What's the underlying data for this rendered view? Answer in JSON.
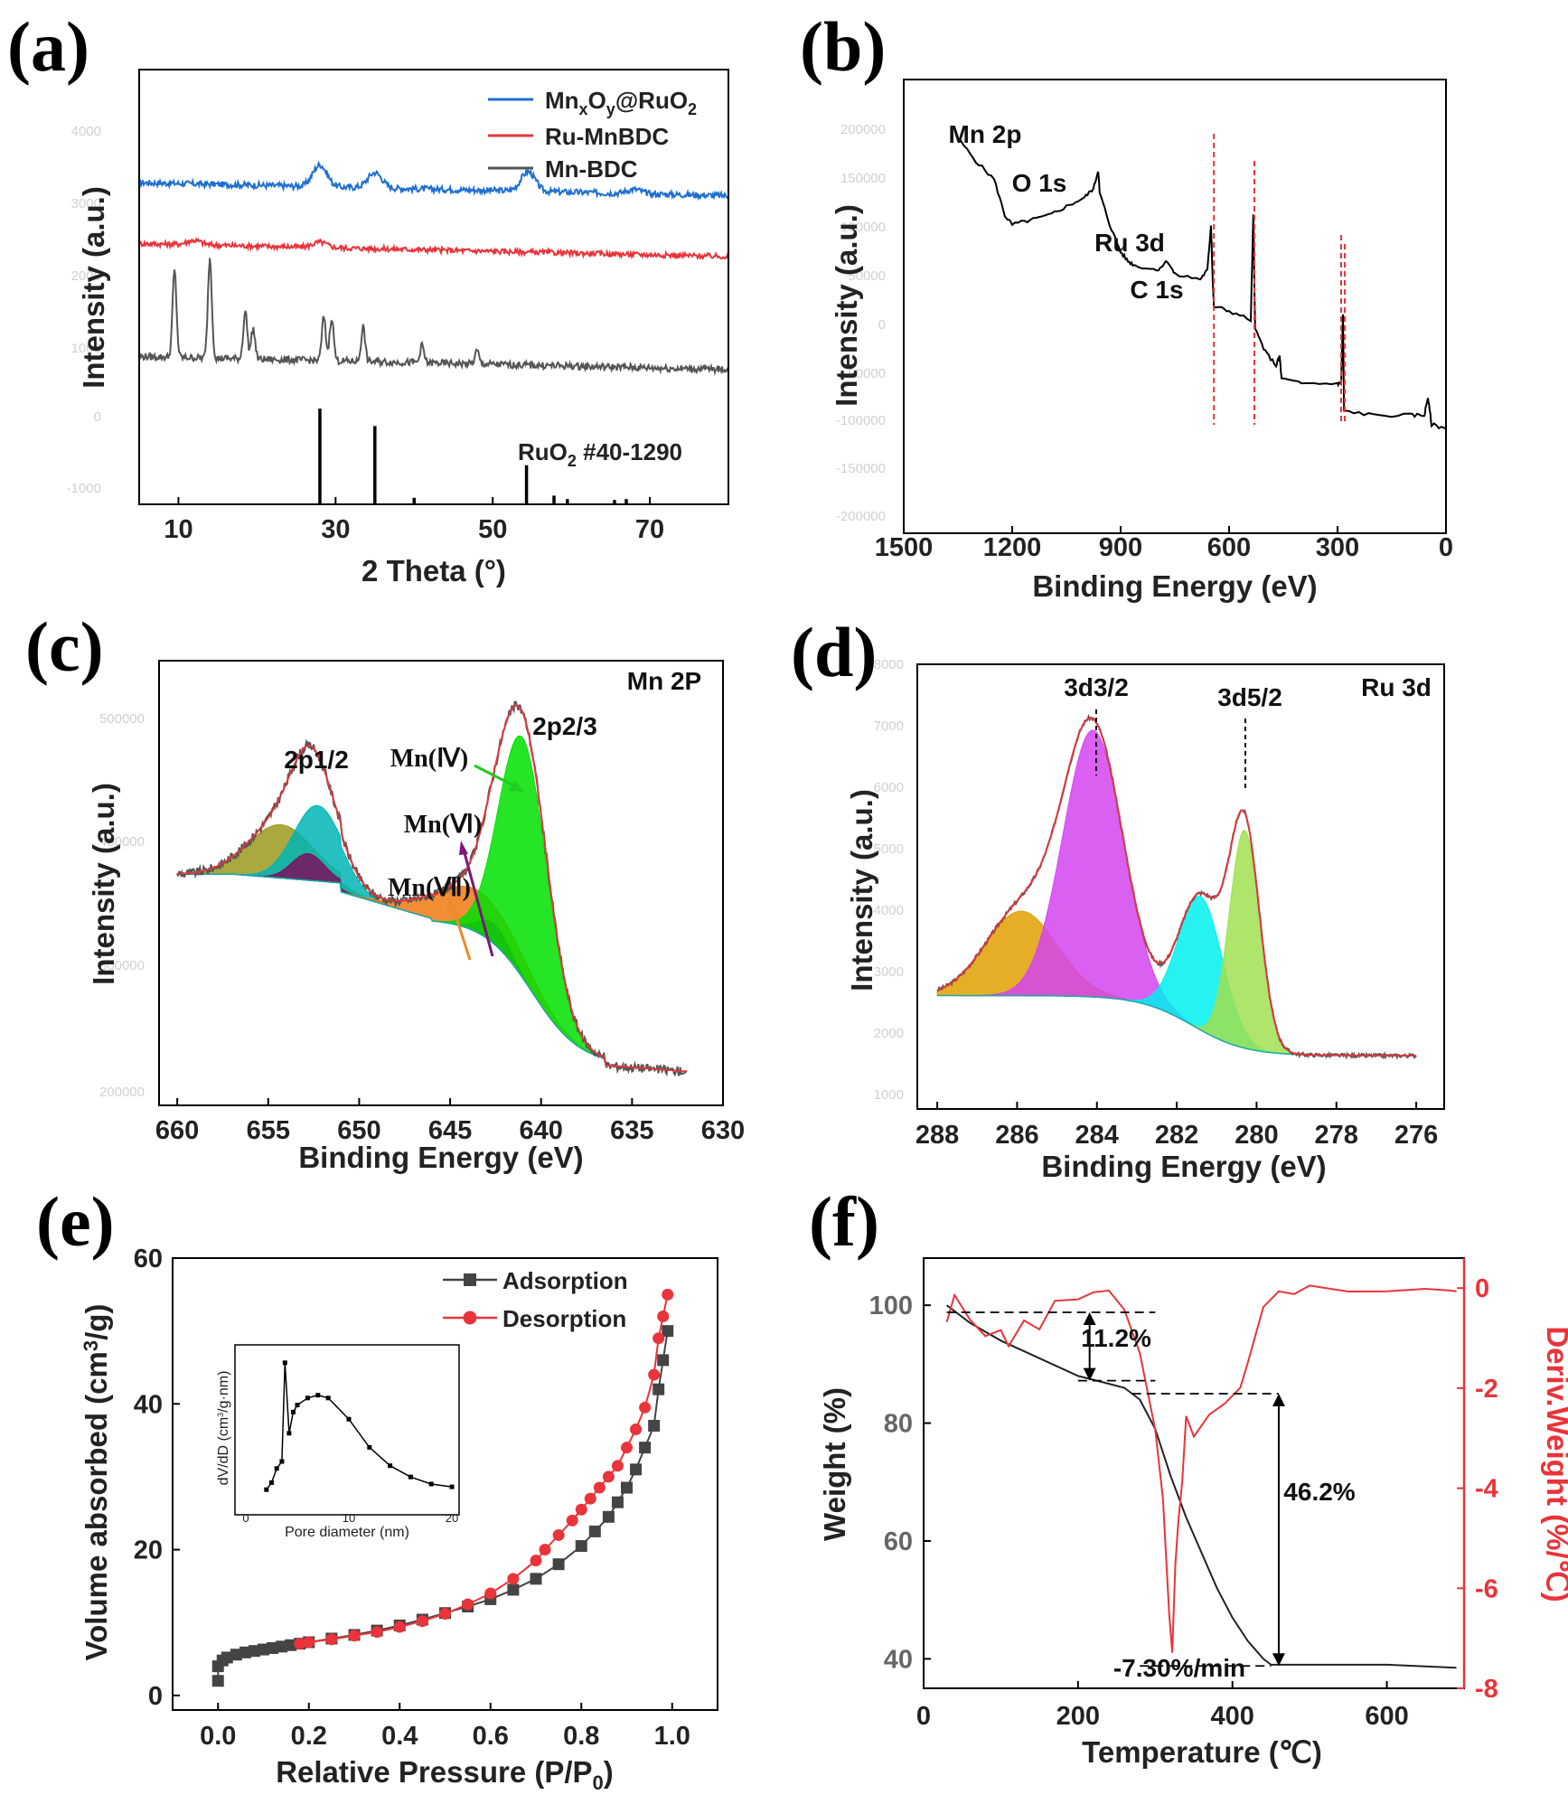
{
  "chart_data": [
    {
      "panel": "(a)",
      "type": "line",
      "xlabel": "2 Theta (°)",
      "ylabel": "Intensity (a.u.)",
      "xlim": [
        5,
        80
      ],
      "xticks": [
        "10",
        "30",
        "50",
        "70"
      ],
      "legend": "top-right",
      "series": [
        {
          "name": "MnxOy@RuO2",
          "color": "#1f6fd0",
          "baseline": 0.74,
          "peaks": [
            [
              28,
              0.05
            ],
            [
              35,
              0.035
            ],
            [
              54.5,
              0.045
            ],
            [
              68,
              0.01
            ]
          ]
        },
        {
          "name": "Ru-MnBDC",
          "color": "#e8343a",
          "baseline": 0.6,
          "peaks": [
            [
              12,
              0.01
            ],
            [
              28,
              0.012
            ]
          ]
        },
        {
          "name": "Mn-BDC",
          "color": "#555555",
          "baseline": 0.34,
          "peaks": [
            [
              9.5,
              0.2
            ],
            [
              14,
              0.23
            ],
            [
              18.5,
              0.11
            ],
            [
              19.5,
              0.07
            ],
            [
              28.5,
              0.1
            ],
            [
              29.5,
              0.1
            ],
            [
              33.5,
              0.08
            ],
            [
              41,
              0.04
            ],
            [
              48,
              0.03
            ]
          ]
        }
      ],
      "reference": {
        "label": "RuO2 #40-1290",
        "sticks": [
          [
            28,
            0.22
          ],
          [
            35,
            0.18
          ],
          [
            40,
            0.015
          ],
          [
            54.3,
            0.09
          ],
          [
            57.8,
            0.02
          ],
          [
            59.5,
            0.012
          ],
          [
            65.5,
            0.01
          ],
          [
            67,
            0.012
          ]
        ]
      }
    },
    {
      "panel": "(b)",
      "type": "line",
      "xlabel": "Binding Energy (eV)",
      "ylabel": "Intensity (a.u.)",
      "xlim": [
        1500,
        0
      ],
      "xticks": [
        "1500",
        "1200",
        "900",
        "600",
        "300",
        "0"
      ],
      "series": [
        {
          "name": "",
          "color": "#000000",
          "points": [
            [
              1350,
              0.87
            ],
            [
              1300,
              0.82
            ],
            [
              1250,
              0.78
            ],
            [
              1220,
              0.7
            ],
            [
              1200,
              0.68
            ],
            [
              1150,
              0.69
            ],
            [
              1100,
              0.7
            ],
            [
              1050,
              0.72
            ],
            [
              1000,
              0.74
            ],
            [
              975,
              0.76
            ],
            [
              962,
              0.8
            ],
            [
              958,
              0.75
            ],
            [
              930,
              0.68
            ],
            [
              900,
              0.62
            ],
            [
              880,
              0.6
            ],
            [
              860,
              0.59
            ],
            [
              800,
              0.58
            ],
            [
              770,
              0.6
            ],
            [
              750,
              0.57
            ],
            [
              680,
              0.56
            ],
            [
              660,
              0.58
            ],
            [
              650,
              0.68
            ],
            [
              645,
              0.55
            ],
            [
              642,
              0.5
            ],
            [
              600,
              0.49
            ],
            [
              540,
              0.47
            ],
            [
              533,
              0.7
            ],
            [
              528,
              0.45
            ],
            [
              500,
              0.4
            ],
            [
              470,
              0.37
            ],
            [
              460,
              0.39
            ],
            [
              455,
              0.34
            ],
            [
              400,
              0.33
            ],
            [
              300,
              0.33
            ],
            [
              290,
              0.33
            ],
            [
              285,
              0.48
            ],
            [
              282,
              0.27
            ],
            [
              200,
              0.26
            ],
            [
              100,
              0.26
            ],
            [
              60,
              0.26
            ],
            [
              50,
              0.3
            ],
            [
              40,
              0.24
            ],
            [
              0,
              0.23
            ]
          ]
        }
      ],
      "markers": [
        {
          "label": "Mn 2p",
          "x": 642
        },
        {
          "label": "O 1s",
          "x": 530
        },
        {
          "label": "Ru 3d",
          "x": 290
        },
        {
          "label": "C 1s",
          "x": 280
        }
      ]
    },
    {
      "panel": "(c)",
      "type": "area",
      "title": "Mn 2P",
      "xlabel": "Binding Energy (eV)",
      "ylabel": "Intensity (a.u.)",
      "xlim": [
        661,
        630
      ],
      "xticks": [
        "660",
        "655",
        "650",
        "645",
        "640",
        "635",
        "630"
      ],
      "annotations": [
        "2p1/2",
        "2p2/3",
        "Mn(Ⅳ)",
        "Mn(Ⅵ)",
        "Mn(Ⅶ)"
      ],
      "components": [
        {
          "color": "#9a9a1e",
          "center": 654.3,
          "height": 0.12,
          "width": 1.8
        },
        {
          "color": "#00b5b5",
          "center": 652.3,
          "height": 0.17,
          "width": 1.3
        },
        {
          "color": "#7a1060",
          "center": 652.8,
          "height": 0.06,
          "width": 0.9
        },
        {
          "color": "#ee7a12",
          "center": 643.6,
          "height": 0.095,
          "width": 2.3
        },
        {
          "color": "#7a1060",
          "center": 642.6,
          "height": 0.045,
          "width": 0.8
        },
        {
          "color": "#00e000",
          "center": 641.0,
          "height": 0.54,
          "width": 1.3
        }
      ]
    },
    {
      "panel": "(d)",
      "type": "area",
      "title": "Ru 3d",
      "xlabel": "Binding Energy (eV)",
      "ylabel": "Intensity (a.u.)",
      "xlim": [
        288.5,
        275.3
      ],
      "xticks": [
        "288",
        "286",
        "284",
        "282",
        "280",
        "278",
        "276"
      ],
      "annotations": [
        "3d3/2",
        "3d5/2"
      ],
      "components": [
        {
          "color": "#e0a000",
          "center": 285.9,
          "height": 0.19,
          "width": 0.9
        },
        {
          "color": "#d444f0",
          "center": 284.1,
          "height": 0.6,
          "width": 0.75
        },
        {
          "color": "#00f0f0",
          "center": 281.4,
          "height": 0.3,
          "width": 0.55
        },
        {
          "color": "#a0e050",
          "center": 280.3,
          "height": 0.49,
          "width": 0.38
        }
      ]
    },
    {
      "panel": "(e)",
      "type": "scatter",
      "xlabel": "Relative Pressure (P/P0)",
      "ylabel": "Volume absorbed (cm3/g)",
      "xlim": [
        -0.1,
        1.1
      ],
      "ylim": [
        -2,
        60
      ],
      "xticks": [
        "0.0",
        "0.2",
        "0.4",
        "0.6",
        "0.8",
        "1.0"
      ],
      "yticks": [
        "0",
        "20",
        "40",
        "60"
      ],
      "legend": "top-right",
      "series": [
        {
          "name": "Adsorption",
          "color": "#444444",
          "x": [
            0.0,
            0.0,
            0.01,
            0.02,
            0.04,
            0.06,
            0.08,
            0.1,
            0.12,
            0.14,
            0.16,
            0.18,
            0.2,
            0.25,
            0.3,
            0.35,
            0.4,
            0.45,
            0.5,
            0.55,
            0.6,
            0.65,
            0.7,
            0.75,
            0.8,
            0.83,
            0.86,
            0.88,
            0.9,
            0.92,
            0.94,
            0.96,
            0.97,
            0.98,
            0.99
          ],
          "y": [
            2,
            4,
            4.8,
            5.2,
            5.6,
            5.9,
            6.1,
            6.3,
            6.5,
            6.7,
            6.9,
            7.1,
            7.3,
            7.8,
            8.3,
            8.9,
            9.6,
            10.4,
            11.3,
            12.2,
            13.2,
            14.5,
            16,
            18,
            20.5,
            22.5,
            24.5,
            26.5,
            28.5,
            31,
            34,
            37,
            42,
            46,
            50
          ]
        },
        {
          "name": "Desorption",
          "color": "#e8343a",
          "x": [
            0.99,
            0.98,
            0.97,
            0.96,
            0.94,
            0.92,
            0.9,
            0.88,
            0.86,
            0.84,
            0.82,
            0.8,
            0.78,
            0.75,
            0.72,
            0.7,
            0.65,
            0.6,
            0.55,
            0.5,
            0.45,
            0.4,
            0.35,
            0.3,
            0.25,
            0.2,
            0.18
          ],
          "y": [
            55,
            52,
            49,
            44,
            39.5,
            36.5,
            34,
            31.5,
            30,
            28.5,
            27,
            25.5,
            24,
            22,
            20,
            18.5,
            16,
            14,
            12.5,
            11.2,
            10.2,
            9.4,
            8.7,
            8.2,
            7.7,
            7.3,
            7.1
          ]
        }
      ],
      "inset": {
        "type": "line",
        "xlabel": "Pore diameter (nm)",
        "ylabel": "dV/dD (cm3/g·nm)",
        "xlim": [
          0,
          20
        ],
        "xticks": [
          "0",
          "10",
          "20"
        ],
        "x": [
          2,
          2.5,
          3,
          3.5,
          3.8,
          4.2,
          4.6,
          5,
          6,
          7,
          8,
          10,
          12,
          14,
          16,
          18,
          20
        ],
        "y": [
          0.05,
          0.1,
          0.2,
          0.25,
          0.95,
          0.45,
          0.6,
          0.65,
          0.7,
          0.72,
          0.7,
          0.55,
          0.35,
          0.22,
          0.14,
          0.09,
          0.07
        ]
      }
    },
    {
      "panel": "(f)",
      "type": "line",
      "xlabel": "Temperature (℃)",
      "ylabel": "Weight (%)",
      "ylabel_right": "Deriv.Weight (%/℃)",
      "xlim": [
        0,
        700
      ],
      "ylim": [
        35,
        108
      ],
      "ylim_right": [
        -8,
        0.6
      ],
      "xticks": [
        "0",
        "200",
        "400",
        "600"
      ],
      "yticks": [
        "40",
        "60",
        "80",
        "100"
      ],
      "yticks_right": [
        "0",
        "-2",
        "-4",
        "-6",
        "-8"
      ],
      "annotations": [
        "11.2%",
        "46.2%",
        "-7.30%/min"
      ],
      "series": [
        {
          "name": "Weight",
          "color": "#222222",
          "x": [
            30,
            60,
            100,
            150,
            200,
            230,
            260,
            280,
            300,
            320,
            340,
            360,
            380,
            400,
            420,
            440,
            450,
            500,
            600,
            690
          ],
          "y": [
            100,
            97,
            94,
            91,
            88,
            87,
            86,
            84,
            79,
            71,
            64,
            58,
            52,
            47,
            43,
            40,
            39,
            39,
            39,
            38.5
          ]
        },
        {
          "name": "Deriv.Weight",
          "color": "#e8343a",
          "x": [
            30,
            40,
            60,
            80,
            100,
            110,
            130,
            150,
            170,
            200,
            220,
            240,
            260,
            280,
            300,
            310,
            318,
            322,
            326,
            330,
            335,
            340,
            350,
            370,
            390,
            410,
            420,
            440,
            460,
            480,
            500,
            550,
            600,
            650,
            680,
            690
          ],
          "y": [
            -0.7,
            -0.2,
            -0.6,
            -0.9,
            -0.8,
            -1.2,
            -0.6,
            -0.8,
            -0.3,
            -0.2,
            -0.1,
            -0.1,
            -0.5,
            -1.3,
            -2.8,
            -4.2,
            -6.5,
            -7.3,
            -5.5,
            -4.7,
            -3.8,
            -2.6,
            -2.9,
            -2.5,
            -2.3,
            -2.0,
            -1.5,
            -0.4,
            -0.1,
            -0.1,
            0.0,
            0.0,
            0.0,
            0.0,
            -0.1,
            0.0
          ]
        }
      ]
    }
  ]
}
